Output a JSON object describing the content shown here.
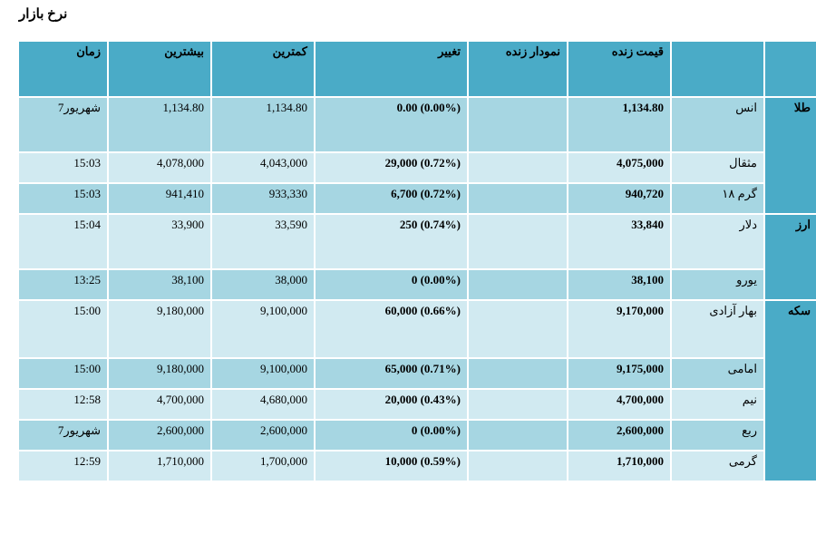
{
  "page": {
    "title": "نرخ بازار"
  },
  "headers": {
    "time": "زمان",
    "high": "بیشترین",
    "low": "کمترین",
    "change": "تغییر",
    "chart": "نمودار زنده",
    "live_price": "قیمت زنده"
  },
  "categories": [
    {
      "name": "طلا"
    },
    {
      "name": "ارز"
    },
    {
      "name": "سکه"
    }
  ],
  "rows": [
    {
      "name": "انس",
      "price": "1,134.80",
      "change": "0.00 (0.00%)",
      "low": "1,134.80",
      "high": "1,134.80",
      "time": "7شهریور"
    },
    {
      "name": "مثقال",
      "price": "4,075,000",
      "change": "29,000 (0.72%)",
      "low": "4,043,000",
      "high": "4,078,000",
      "time": "15:03"
    },
    {
      "name": "گرم ۱۸",
      "price": "940,720",
      "change": "6,700 (0.72%)",
      "low": "933,330",
      "high": "941,410",
      "time": "15:03"
    },
    {
      "name": "دلار",
      "price": "33,840",
      "change": "250 (0.74%)",
      "low": "33,590",
      "high": "33,900",
      "time": "15:04"
    },
    {
      "name": "یورو",
      "price": "38,100",
      "change": "0 (0.00%)",
      "low": "38,000",
      "high": "38,100",
      "time": "13:25"
    },
    {
      "name": "بهار آزادی",
      "price": "9,170,000",
      "change": "60,000 (0.66%)",
      "low": "9,100,000",
      "high": "9,180,000",
      "time": "15:00"
    },
    {
      "name": "امامی",
      "price": "9,175,000",
      "change": "65,000 (0.71%)",
      "low": "9,100,000",
      "high": "9,180,000",
      "time": "15:00"
    },
    {
      "name": "نیم",
      "price": "4,700,000",
      "change": "20,000 (0.43%)",
      "low": "4,680,000",
      "high": "4,700,000",
      "time": "12:58"
    },
    {
      "name": "ربع",
      "price": "2,600,000",
      "change": "0 (0.00%)",
      "low": "2,600,000",
      "high": "2,600,000",
      "time": "7شهریور"
    },
    {
      "name": "گرمی",
      "price": "1,710,000",
      "change": "10,000 (0.59%)",
      "low": "1,700,000",
      "high": "1,710,000",
      "time": "12:59"
    }
  ]
}
